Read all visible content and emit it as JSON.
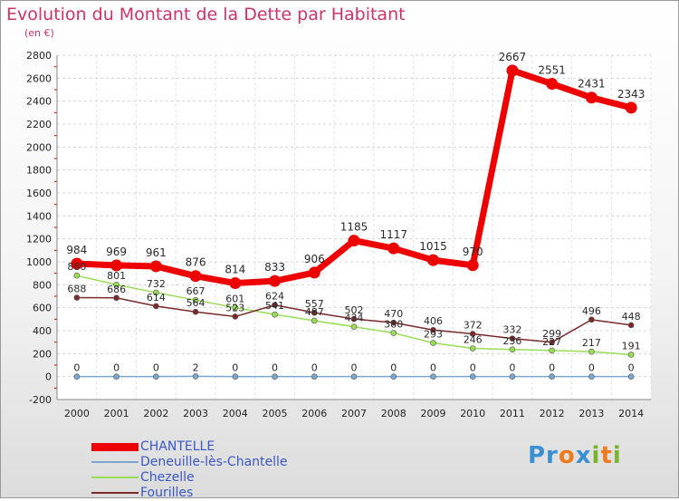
{
  "header": {
    "title": "Evolution du Montant de la Dette par Habitant",
    "unit": "(en €)"
  },
  "logo": {
    "text": "Proxiti"
  },
  "chart_data": {
    "type": "line",
    "title": "Evolution du Montant de la Dette par Habitant",
    "subtitle": "(en €)",
    "x": [
      "2000",
      "2001",
      "2002",
      "2003",
      "2004",
      "2005",
      "2006",
      "2007",
      "2008",
      "2009",
      "2010",
      "2011",
      "2012",
      "2013",
      "2014"
    ],
    "ylim": [
      -200,
      2800
    ],
    "yticks": [
      -200,
      0,
      200,
      400,
      600,
      800,
      1000,
      1200,
      1400,
      1600,
      1800,
      2000,
      2200,
      2400,
      2600,
      2800
    ],
    "grid": "horizontal dashed",
    "legend_position": "bottom-left",
    "series": [
      {
        "name": "CHANTELLE",
        "color": "#ee0000",
        "values": [
          984,
          969,
          961,
          876,
          814,
          833,
          906,
          1185,
          1117,
          1015,
          970,
          2667,
          2551,
          2431,
          2343
        ]
      },
      {
        "name": "Deneuille-lès-Chantelle",
        "color": "#7aa6cf",
        "values": [
          0,
          0,
          0,
          2,
          0,
          0,
          0,
          0,
          0,
          0,
          0,
          0,
          0,
          0,
          0
        ]
      },
      {
        "name": "Chezelle",
        "color": "#99dd55",
        "values": [
          880,
          801,
          732,
          667,
          601,
          541,
          487,
          434,
          380,
          293,
          246,
          236,
          227,
          217,
          191
        ]
      },
      {
        "name": "Fourilles",
        "color": "#7a2a2a",
        "values": [
          688,
          686,
          614,
          564,
          523,
          624,
          557,
          502,
          470,
          406,
          372,
          332,
          299,
          496,
          448
        ]
      }
    ]
  }
}
